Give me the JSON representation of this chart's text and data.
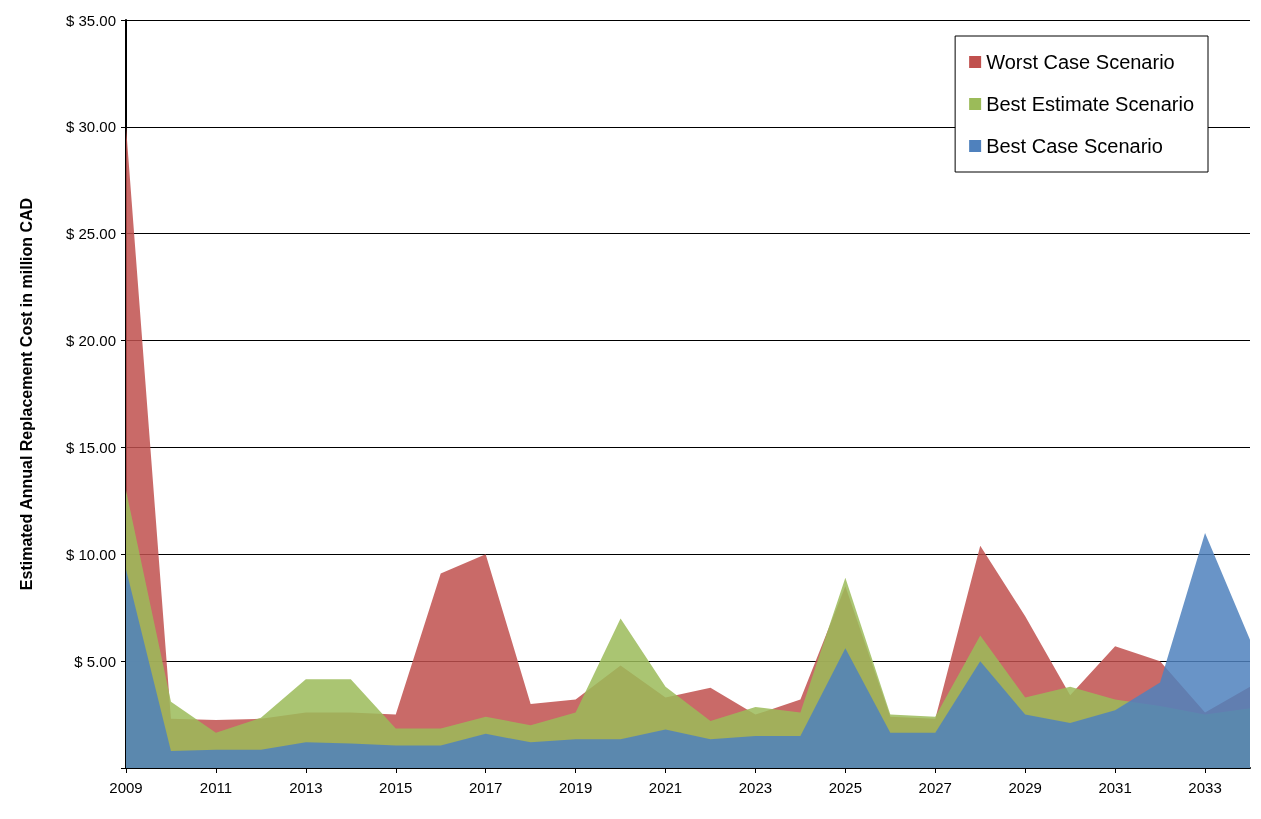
{
  "chart_data": {
    "type": "area",
    "ylabel": "Estimated Annual Replacement Cost in million CAD",
    "x": [
      2009,
      2010,
      2011,
      2012,
      2013,
      2014,
      2015,
      2016,
      2017,
      2018,
      2019,
      2020,
      2021,
      2022,
      2023,
      2024,
      2025,
      2026,
      2027,
      2028,
      2029,
      2030,
      2031,
      2032,
      2033,
      2034
    ],
    "xlim": [
      2009,
      2034
    ],
    "xticks": [
      2009,
      2011,
      2013,
      2015,
      2017,
      2019,
      2021,
      2023,
      2025,
      2027,
      2029,
      2031,
      2033
    ],
    "ylim": [
      0,
      35
    ],
    "yticks": [
      {
        "value": 0,
        "label": null
      },
      {
        "value": 5,
        "label": "$ 5.00"
      },
      {
        "value": 10,
        "label": "$ 10.00"
      },
      {
        "value": 15,
        "label": "$ 15.00"
      },
      {
        "value": 20,
        "label": "$ 20.00"
      },
      {
        "value": 25,
        "label": "$ 25.00"
      },
      {
        "value": 30,
        "label": "$ 30.00"
      },
      {
        "value": 35,
        "label": "$ 35.00"
      }
    ],
    "grid": "y",
    "legend": "top right",
    "series": [
      {
        "name": "Worst Case Scenario",
        "color": "#c0504d",
        "values": [
          30,
          2.3,
          2.25,
          2.3,
          2.6,
          2.6,
          2.5,
          9.1,
          10,
          3,
          3.2,
          4.8,
          3.3,
          3.75,
          2.5,
          3.2,
          8.5,
          2.4,
          2.3,
          10.4,
          7.1,
          3.4,
          5.7,
          5,
          2.6,
          3.8
        ]
      },
      {
        "name": "Best Estimate Scenario",
        "color": "#9bbb59",
        "values": [
          13,
          3.1,
          1.65,
          2.35,
          4.15,
          4.15,
          1.85,
          1.85,
          2.4,
          2,
          2.6,
          7,
          3.8,
          2.2,
          2.85,
          2.6,
          8.9,
          2.5,
          2.4,
          6.2,
          3.3,
          3.8,
          3.2,
          2.9,
          2.5,
          2.8
        ]
      },
      {
        "name": "Best Case Scenario",
        "color": "#4f81bd",
        "values": [
          9.3,
          0.8,
          0.85,
          0.85,
          1.2,
          1.15,
          1.05,
          1.05,
          1.6,
          1.2,
          1.35,
          1.35,
          1.8,
          1.35,
          1.5,
          1.5,
          5.6,
          1.65,
          1.65,
          5,
          2.5,
          2.1,
          2.7,
          4,
          11,
          6
        ]
      }
    ]
  }
}
